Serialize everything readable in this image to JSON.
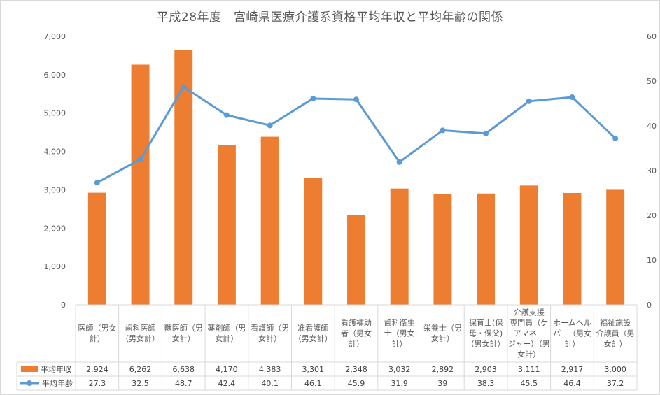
{
  "chart_data": {
    "type": "bar+line",
    "title": "平成28年度　宮崎県医療介護系資格平均年収と平均年齢の関係",
    "categories": [
      [
        "医師（男女",
        "計）"
      ],
      [
        "歯科医師",
        "（男女計）"
      ],
      [
        "獣医師（男",
        "女計）"
      ],
      [
        "薬剤師（男",
        "女計）"
      ],
      [
        "看護師（男",
        "女計）"
      ],
      [
        "准看護師",
        "（男女計）"
      ],
      [
        "看護補助",
        "者（男女",
        "計）"
      ],
      [
        "歯科衛生",
        "士（男女",
        "計）"
      ],
      [
        "栄養士（男",
        "女計）"
      ],
      [
        "保育士(保",
        "母・保父)",
        "（男女計）"
      ],
      [
        "介護支援",
        "専門員（ケ",
        "アマネー",
        "ジャー）（男",
        "女計）"
      ],
      [
        "ホームヘル",
        "パー（男女",
        "計）"
      ],
      [
        "福祉施設",
        "介護員（男",
        "女計）"
      ]
    ],
    "series": [
      {
        "name": "平均年収",
        "type": "bar",
        "axis": "left",
        "color": "#ed7d31",
        "values": [
          2924,
          6262,
          6638,
          4170,
          4383,
          3301,
          2348,
          3032,
          2892,
          2903,
          3111,
          2917,
          3000
        ],
        "labels": [
          "2,924",
          "6,262",
          "6,638",
          "4,170",
          "4,383",
          "3,301",
          "2,348",
          "3,032",
          "2,892",
          "2,903",
          "3,111",
          "2,917",
          "3,000"
        ]
      },
      {
        "name": "平均年齢",
        "type": "line",
        "axis": "right",
        "color": "#5b9bd5",
        "values": [
          27.3,
          32.5,
          48.7,
          42.4,
          40.1,
          46.1,
          45.9,
          31.9,
          39,
          38.3,
          45.5,
          46.4,
          37.2
        ],
        "labels": [
          "27.3",
          "32.5",
          "48.7",
          "42.4",
          "40.1",
          "46.1",
          "45.9",
          "31.9",
          "39",
          "38.3",
          "45.5",
          "46.4",
          "37.2"
        ]
      }
    ],
    "y_left": {
      "min": 0,
      "max": 7000,
      "step": 1000,
      "ticks": [
        "0",
        "1,000",
        "2,000",
        "3,000",
        "4,000",
        "5,000",
        "6,000",
        "7,000"
      ]
    },
    "y_right": {
      "min": 0,
      "max": 60,
      "step": 10,
      "ticks": [
        "0",
        "10",
        "20",
        "30",
        "40",
        "50",
        "60"
      ]
    },
    "data_table": true,
    "legend": "data-table",
    "grid": false
  }
}
